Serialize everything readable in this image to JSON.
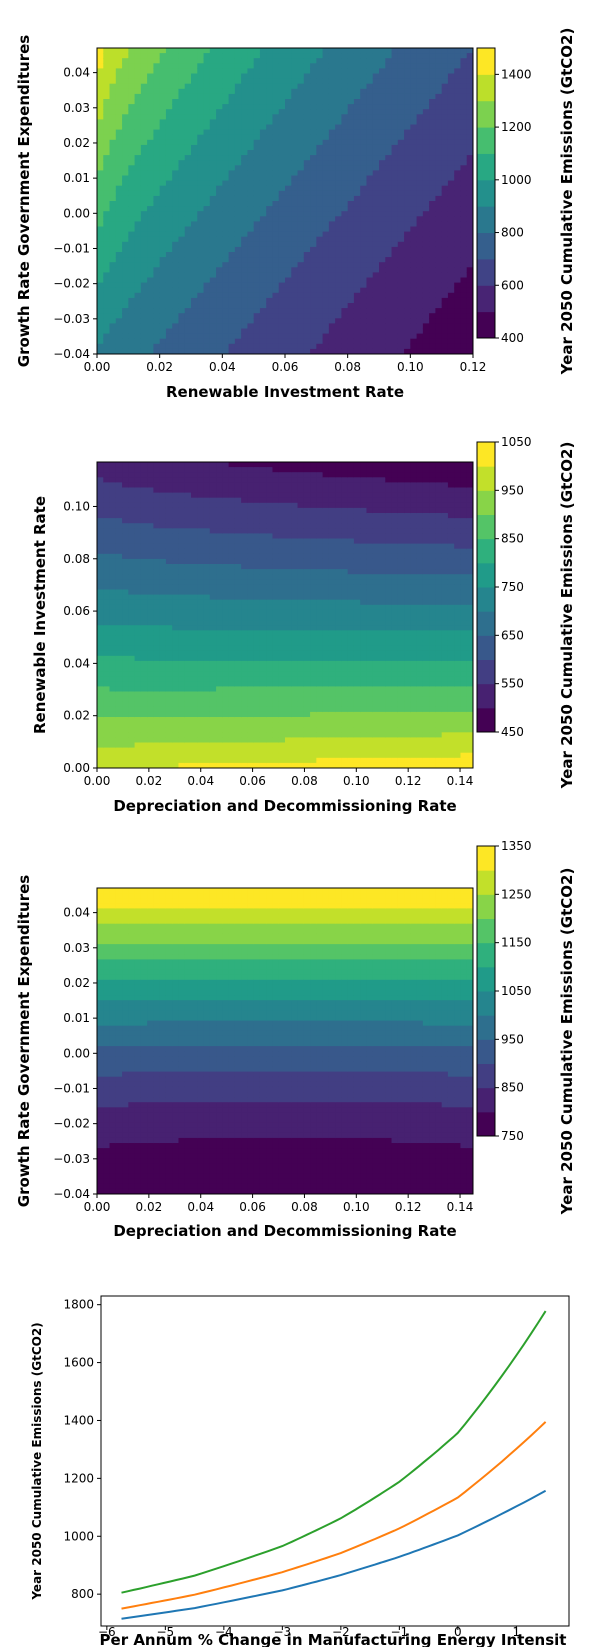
{
  "chart_data": [
    {
      "type": "contour",
      "xlabel": "Renewable Investment Rate",
      "ylabel": "Growth Rate Government Expenditures",
      "colorbar_label": "Year 2050 Cumulative Emissions (GtCO2)",
      "xlim": [
        0.0,
        0.12
      ],
      "ylim": [
        -0.04,
        0.047
      ],
      "x_ticks": [
        "0.00",
        "0.02",
        "0.04",
        "0.06",
        "0.08",
        "0.10",
        "0.12"
      ],
      "y_ticks": [
        "−0.04",
        "−0.03",
        "−0.02",
        "−0.01",
        "0.00",
        "0.01",
        "0.02",
        "0.03",
        "0.04"
      ],
      "colorbar_range": [
        400,
        1500
      ],
      "colorbar_ticks": [
        "400",
        "600",
        "800",
        "1000",
        "1200",
        "1400"
      ],
      "colormap": "viridis",
      "corner_values": {
        "x0_ylow": 900,
        "x0_yhigh": 1480,
        "xmax_ylow": 430,
        "xmax_yhigh": 700
      }
    },
    {
      "type": "contour",
      "xlabel": "Depreciation and Decommissioning Rate",
      "ylabel": "Renewable Investment Rate",
      "colorbar_label": "Year 2050 Cumulative Emissions (GtCO2)",
      "xlim": [
        0.0,
        0.145
      ],
      "ylim": [
        0.0,
        0.117
      ],
      "x_ticks": [
        "0.00",
        "0.02",
        "0.04",
        "0.06",
        "0.08",
        "0.10",
        "0.12",
        "0.14"
      ],
      "y_ticks": [
        "0.00",
        "0.02",
        "0.04",
        "0.06",
        "0.08",
        "0.10"
      ],
      "colorbar_range": [
        450,
        1050
      ],
      "colorbar_ticks": [
        "450",
        "550",
        "650",
        "750",
        "850",
        "950",
        "1050"
      ],
      "colormap": "viridis",
      "corner_values": {
        "x0_ylow": 1000,
        "x0_yhigh": 530,
        "xmax_ylow": 1040,
        "xmax_yhigh": 460
      }
    },
    {
      "type": "contour",
      "xlabel": "Depreciation and Decommissioning Rate",
      "ylabel": "Growth Rate Government Expenditures",
      "colorbar_label": "Year 2050 Cumulative Emissions (GtCO2)",
      "xlim": [
        0.0,
        0.145
      ],
      "ylim": [
        -0.04,
        0.047
      ],
      "x_ticks": [
        "0.00",
        "0.02",
        "0.04",
        "0.06",
        "0.08",
        "0.10",
        "0.12",
        "0.14"
      ],
      "y_ticks": [
        "−0.04",
        "−0.03",
        "−0.02",
        "−0.01",
        "0.00",
        "0.01",
        "0.02",
        "0.03",
        "0.04"
      ],
      "colorbar_range": [
        750,
        1350
      ],
      "colorbar_ticks": [
        "750",
        "850",
        "950",
        "1050",
        "1150",
        "1250",
        "1350"
      ],
      "colormap": "viridis",
      "corner_values": {
        "ylow": 770,
        "yhigh": 1360
      }
    },
    {
      "type": "line",
      "xlabel": "Per Annum % Change in Manufacturing Energy Intensit",
      "ylabel": "Year 2050 Cumulative Emissions (GtCO2)",
      "xlim": [
        -6.1,
        1.9
      ],
      "ylim": [
        690,
        1830
      ],
      "x_ticks": [
        "−6",
        "−5",
        "−4",
        "−3",
        "−2",
        "−1",
        "0",
        "1"
      ],
      "y_ticks": [
        "800",
        "1000",
        "1200",
        "1400",
        "1600",
        "1800"
      ],
      "x": [
        -5.75,
        -4.5,
        -3,
        -2,
        -1,
        0,
        1.5
      ],
      "series": [
        {
          "color": "#1f77b4",
          "values": [
            715,
            752,
            813,
            866,
            929,
            1003,
            1157
          ]
        },
        {
          "color": "#ff7f0e",
          "values": [
            750,
            798,
            876,
            942,
            1027,
            1134,
            1395
          ]
        },
        {
          "color": "#2ca02c",
          "values": [
            805,
            864,
            966,
            1062,
            1188,
            1357,
            1778
          ]
        }
      ]
    }
  ]
}
